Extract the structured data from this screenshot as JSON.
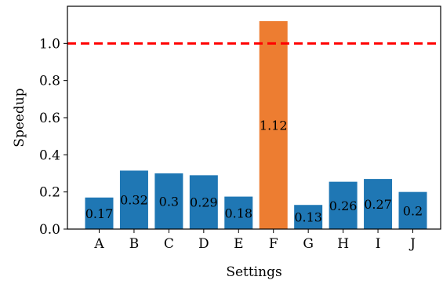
{
  "chart_data": {
    "type": "bar",
    "categories": [
      "A",
      "B",
      "C",
      "D",
      "E",
      "F",
      "G",
      "H",
      "I",
      "J"
    ],
    "values": [
      0.17,
      0.315,
      0.3,
      0.29,
      0.175,
      1.12,
      0.13,
      0.255,
      0.27,
      0.2
    ],
    "data_labels": [
      "0.17",
      "0.32",
      "0.3",
      "0.29",
      "0.18",
      "1.12",
      "0.13",
      "0.26",
      "0.27",
      "0.2"
    ],
    "bar_colors": [
      "#1f77b4",
      "#1f77b4",
      "#1f77b4",
      "#1f77b4",
      "#1f77b4",
      "#ed7d31",
      "#1f77b4",
      "#1f77b4",
      "#1f77b4",
      "#1f77b4"
    ],
    "xlabel": "Settings",
    "ylabel": "Speedup",
    "ylim": [
      0,
      1.2
    ],
    "yticks": [
      "0.0",
      "0.2",
      "0.4",
      "0.6",
      "0.8",
      "1.0"
    ],
    "reference_line": {
      "y": 1.0,
      "color": "#ff0000",
      "style": "dashed"
    },
    "grid": false
  }
}
